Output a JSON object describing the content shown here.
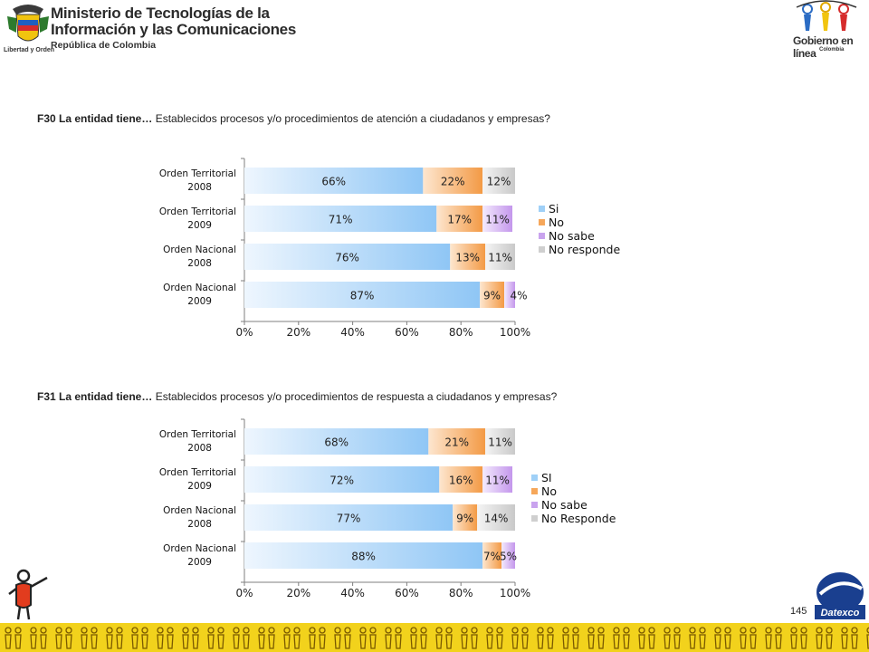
{
  "header": {
    "ministry_line1": "Ministerio de Tecnologías de la",
    "ministry_line2": "Información y las Comunicaciones",
    "ministry_line3": "República de Colombia",
    "motto": "Libertad y Orden",
    "gel_name": "Gobierno en línea",
    "gel_country": "Colombia"
  },
  "footer": {
    "page_number": "145",
    "brand": "Datexco"
  },
  "colors": {
    "si": "#9fd0f7",
    "no": "#f6a75a",
    "no_sabe": "#c9a3ee",
    "no_responde": "#cfcfcf"
  },
  "questions": [
    {
      "id": "F30 La  entidad tiene…",
      "text": " Establecidos procesos y/o procedimientos de atención a ciudadanos y empresas?"
    },
    {
      "id": "F31  La  entidad tiene…",
      "text": " Establecidos procesos  y/o procedimientos de respuesta a ciudadanos y empresas?"
    }
  ],
  "chart_data": [
    {
      "type": "bar",
      "orientation": "horizontal-stacked-100",
      "title": "F30 La  entidad tiene… Establecidos procesos y/o procedimientos de atención a ciudadanos y empresas?",
      "categories": [
        [
          "Orden Territorial",
          "2008"
        ],
        [
          "Orden Territorial",
          "2009"
        ],
        [
          "Orden Nacional",
          "2008"
        ],
        [
          "Orden Nacional",
          "2009"
        ]
      ],
      "series": [
        {
          "name": "Si",
          "values": [
            66,
            71,
            76,
            87
          ],
          "labels": [
            "66%",
            "71%",
            "76%",
            "87%"
          ]
        },
        {
          "name": "No",
          "values": [
            22,
            17,
            13,
            9
          ],
          "labels": [
            "22%",
            "17%",
            "13%",
            "9%"
          ]
        },
        {
          "name": "No sabe",
          "values": [
            0,
            11,
            0,
            4
          ],
          "labels": [
            "",
            "11%",
            "",
            "4%"
          ]
        },
        {
          "name": "No responde",
          "values": [
            12,
            0,
            11,
            0
          ],
          "labels": [
            "12%",
            "",
            "11%",
            ""
          ]
        }
      ],
      "xticks": [
        "0%",
        "20%",
        "40%",
        "60%",
        "80%",
        "100%"
      ],
      "xlim": [
        0,
        100
      ],
      "legend": "right"
    },
    {
      "type": "bar",
      "orientation": "horizontal-stacked-100",
      "title": "F31  La  entidad tiene… Establecidos procesos  y/o procedimientos de respuesta a ciudadanos y empresas?",
      "categories": [
        [
          "Orden Territorial",
          "2008"
        ],
        [
          "Orden Territorial",
          "2009"
        ],
        [
          "Orden Nacional",
          "2008"
        ],
        [
          "Orden Nacional",
          "2009"
        ]
      ],
      "series": [
        {
          "name": "SI",
          "values": [
            68,
            72,
            77,
            88
          ],
          "labels": [
            "68%",
            "72%",
            "77%",
            "88%"
          ]
        },
        {
          "name": "No",
          "values": [
            21,
            16,
            9,
            7
          ],
          "labels": [
            "21%",
            "16%",
            "9%",
            "7%"
          ]
        },
        {
          "name": "No sabe",
          "values": [
            0,
            11,
            0,
            5
          ],
          "labels": [
            "",
            "11%",
            "",
            "5%"
          ]
        },
        {
          "name": "No Responde",
          "values": [
            11,
            0,
            14,
            0
          ],
          "labels": [
            "11%",
            "",
            "14%",
            ""
          ]
        }
      ],
      "xticks": [
        "0%",
        "20%",
        "40%",
        "60%",
        "80%",
        "100%"
      ],
      "xlim": [
        0,
        100
      ],
      "legend": "right"
    }
  ]
}
